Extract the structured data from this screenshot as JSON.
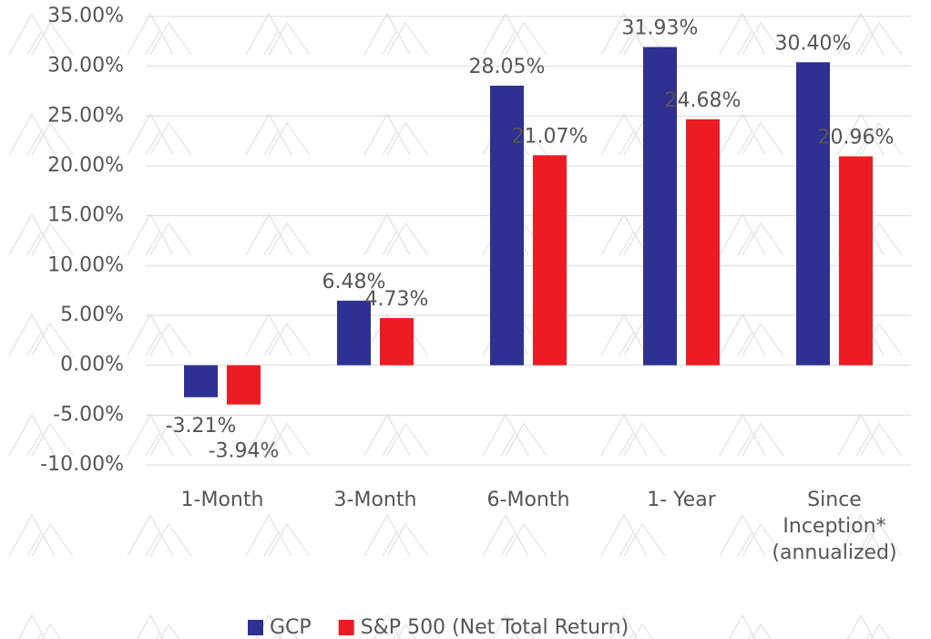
{
  "chart_data": {
    "type": "bar",
    "categories": [
      "1-Month",
      "3-Month",
      "6-Month",
      "1- Year",
      "Since Inception* (annualized)"
    ],
    "series": [
      {
        "name": "GCP",
        "color": "#2e3192",
        "values": [
          -3.21,
          6.48,
          28.05,
          31.93,
          30.4
        ],
        "value_labels": [
          "-3.21%",
          "6.48%",
          "28.05%",
          "31.93%",
          "30.40%"
        ]
      },
      {
        "name": "S&P 500 (Net Total Return)",
        "color": "#ed1c24",
        "values": [
          -3.94,
          4.73,
          21.07,
          24.68,
          20.96
        ],
        "value_labels": [
          "-3.94%",
          "4.73%",
          "21.07%",
          "24.68%",
          "20.96%"
        ]
      }
    ],
    "ylim": [
      -10,
      35
    ],
    "yticks": [
      {
        "value": -10,
        "label": "-10.00%"
      },
      {
        "value": -5,
        "label": "-5.00%"
      },
      {
        "value": 0,
        "label": "0.00%"
      },
      {
        "value": 5,
        "label": "5.00%"
      },
      {
        "value": 10,
        "label": "10.00%"
      },
      {
        "value": 15,
        "label": "15.00%"
      },
      {
        "value": 20,
        "label": "20.00%"
      },
      {
        "value": 25,
        "label": "25.00%"
      },
      {
        "value": 30,
        "label": "30.00%"
      },
      {
        "value": 35,
        "label": "35.00%"
      }
    ],
    "grid": true,
    "legend": "bottom"
  }
}
